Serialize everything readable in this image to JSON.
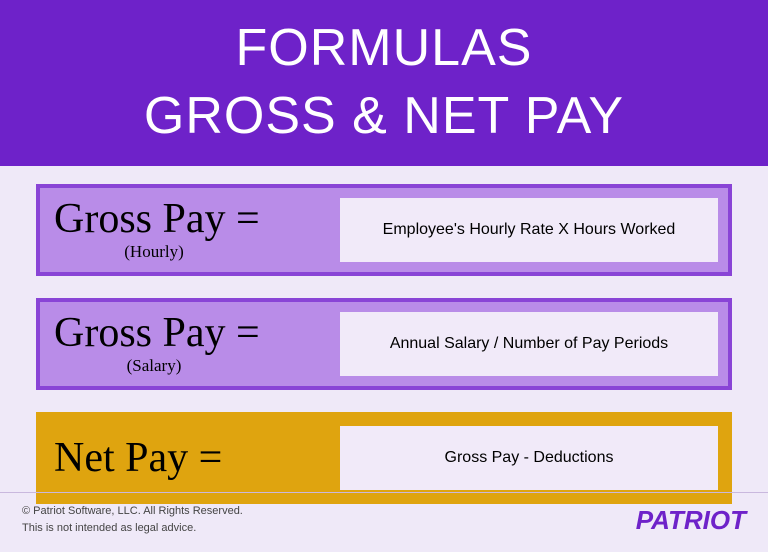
{
  "header": {
    "line1": "FORMULAS",
    "line2": "GROSS & NET PAY"
  },
  "formulas": [
    {
      "name": "Gross Pay =",
      "sub": "(Hourly)",
      "rhs": "Employee's Hourly Rate X Hours Worked",
      "variant": "purple"
    },
    {
      "name": "Gross Pay =",
      "sub": "(Salary)",
      "rhs": "Annual Salary / Number of Pay Periods",
      "variant": "purple"
    },
    {
      "name": "Net Pay =",
      "sub": "",
      "rhs": "Gross Pay - Deductions",
      "variant": "gold"
    }
  ],
  "footer": {
    "copyright": "© Patriot Software, LLC. All Rights Reserved.",
    "disclaimer": "This is not intended as legal advice.",
    "logo": "PATRIOT"
  },
  "colors": {
    "header_bg": "#6e22c9",
    "body_bg": "#efe9f8",
    "purple_card_bg": "#b98ce8",
    "purple_card_border": "#8944d6",
    "gold_card_bg": "#dfa40f",
    "formula_box_bg": "#f1eaf9",
    "logo_color": "#6e22c9"
  }
}
